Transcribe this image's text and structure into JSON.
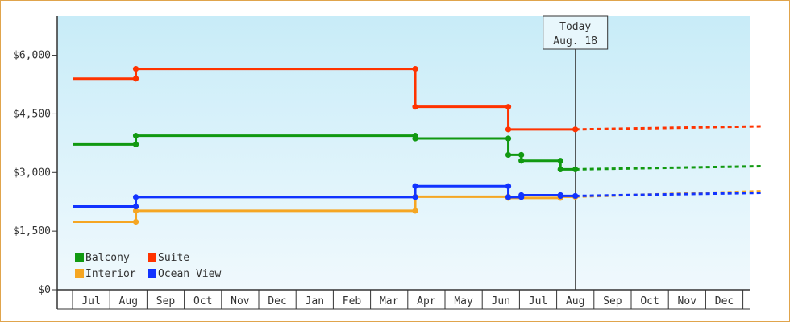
{
  "chart_data": {
    "type": "line",
    "step": true,
    "x_categories": [
      "Jul",
      "Aug",
      "Sep",
      "Oct",
      "Nov",
      "Dec",
      "Jan",
      "Feb",
      "Mar",
      "Apr",
      "May",
      "Jun",
      "Jul",
      "Aug",
      "Sep",
      "Oct",
      "Nov",
      "Dec"
    ],
    "y_ticks": [
      "$0",
      "$1,500",
      "$3,000",
      "$4,500",
      "$6,000"
    ],
    "ylim": [
      0,
      7000
    ],
    "grid": false,
    "legend_position": "bottom-left",
    "today_label": [
      "Today",
      "Aug. 18"
    ],
    "today_x": 13.0,
    "series": [
      {
        "name": "Balcony",
        "color": "#119911",
        "points": [
          [
            -0.5,
            3720
          ],
          [
            1.2,
            3720
          ],
          [
            1.2,
            3940
          ],
          [
            8.7,
            3940
          ],
          [
            8.7,
            3870
          ],
          [
            11.2,
            3870
          ],
          [
            11.2,
            3450
          ],
          [
            11.55,
            3450
          ],
          [
            11.55,
            3300
          ],
          [
            12.6,
            3300
          ],
          [
            12.6,
            3080
          ],
          [
            13.0,
            3080
          ]
        ],
        "projection": [
          [
            13.0,
            3080
          ],
          [
            18.0,
            3160
          ]
        ]
      },
      {
        "name": "Suite",
        "color": "#ff3300",
        "points": [
          [
            -0.5,
            5400
          ],
          [
            1.2,
            5400
          ],
          [
            1.2,
            5650
          ],
          [
            8.7,
            5650
          ],
          [
            8.7,
            4680
          ],
          [
            11.2,
            4680
          ],
          [
            11.2,
            4100
          ],
          [
            13.0,
            4100
          ]
        ],
        "projection": [
          [
            13.0,
            4100
          ],
          [
            18.0,
            4180
          ]
        ]
      },
      {
        "name": "Interior",
        "color": "#f5a623",
        "points": [
          [
            -0.5,
            1740
          ],
          [
            1.2,
            1740
          ],
          [
            1.2,
            2020
          ],
          [
            8.7,
            2020
          ],
          [
            8.7,
            2380
          ],
          [
            11.2,
            2380
          ],
          [
            11.2,
            2350
          ],
          [
            12.6,
            2350
          ],
          [
            12.6,
            2380
          ],
          [
            13.0,
            2380
          ]
        ],
        "projection": [
          [
            13.0,
            2380
          ],
          [
            18.0,
            2520
          ]
        ]
      },
      {
        "name": "Ocean View",
        "color": "#1133ff",
        "points": [
          [
            -0.5,
            2130
          ],
          [
            1.2,
            2130
          ],
          [
            1.2,
            2370
          ],
          [
            8.7,
            2370
          ],
          [
            8.7,
            2650
          ],
          [
            11.2,
            2650
          ],
          [
            11.2,
            2370
          ],
          [
            11.55,
            2370
          ],
          [
            11.55,
            2420
          ],
          [
            12.6,
            2420
          ],
          [
            12.6,
            2400
          ],
          [
            13.0,
            2400
          ]
        ],
        "projection": [
          [
            13.0,
            2400
          ],
          [
            18.0,
            2480
          ]
        ]
      }
    ],
    "legend_order": [
      "Balcony",
      "Suite",
      "Interior",
      "Ocean View"
    ]
  }
}
